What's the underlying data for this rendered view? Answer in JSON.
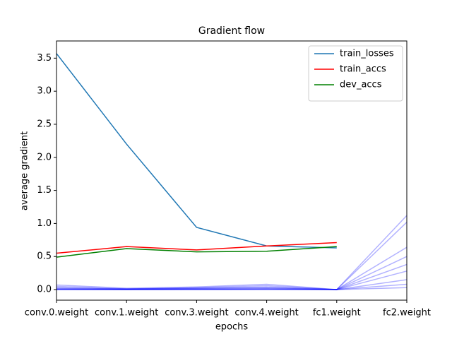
{
  "chart_data": {
    "type": "line",
    "title": "Gradient flow",
    "x_label": "epochs",
    "y_label": "average gradient",
    "categories": [
      "conv.0.weight",
      "conv.1.weight",
      "conv.3.weight",
      "conv.4.weight",
      "fc1.weight",
      "fc2.weight"
    ],
    "series": [
      {
        "name": "train_losses",
        "color": "#1f77b4",
        "values": [
          3.57,
          2.2,
          0.94,
          0.66,
          0.63,
          null
        ]
      },
      {
        "name": "train_accs",
        "color": "#ff0000",
        "values": [
          0.55,
          0.65,
          0.6,
          0.66,
          0.71,
          null
        ]
      },
      {
        "name": "dev_accs",
        "color": "#008000",
        "values": [
          0.49,
          0.62,
          0.57,
          0.58,
          0.65,
          null
        ]
      }
    ],
    "gradient_color": "#0000ff",
    "gradient_alpha": 0.3,
    "gradient_lines": [
      [
        0.07,
        0.02,
        0.04,
        0.08,
        0,
        1.12
      ],
      [
        0.05,
        0.01,
        0.03,
        0.06,
        0,
        1.02
      ],
      [
        0.03,
        0.01,
        0.02,
        0.04,
        0,
        0.64
      ],
      [
        0.02,
        0.01,
        0.02,
        0.03,
        0,
        0.5
      ],
      [
        0.01,
        0.005,
        0.01,
        0.02,
        0,
        0.38
      ],
      [
        0.01,
        0,
        0.01,
        0.01,
        0,
        0.28
      ],
      [
        0,
        0,
        0,
        0.01,
        0,
        0.15
      ],
      [
        0,
        0,
        0,
        0,
        0,
        0.08
      ],
      [
        0,
        0,
        0,
        0,
        0,
        0.03
      ]
    ],
    "ylim": [
      -0.16,
      3.76
    ],
    "yticks": [
      {
        "value": 0,
        "label": "0.0"
      },
      0.5,
      {
        "value": 1,
        "label": "1.0"
      },
      1.5,
      {
        "value": 2,
        "label": "2.0"
      },
      2.5,
      {
        "value": 3,
        "label": "3.0"
      },
      3.5
    ],
    "legend": "upper right"
  }
}
